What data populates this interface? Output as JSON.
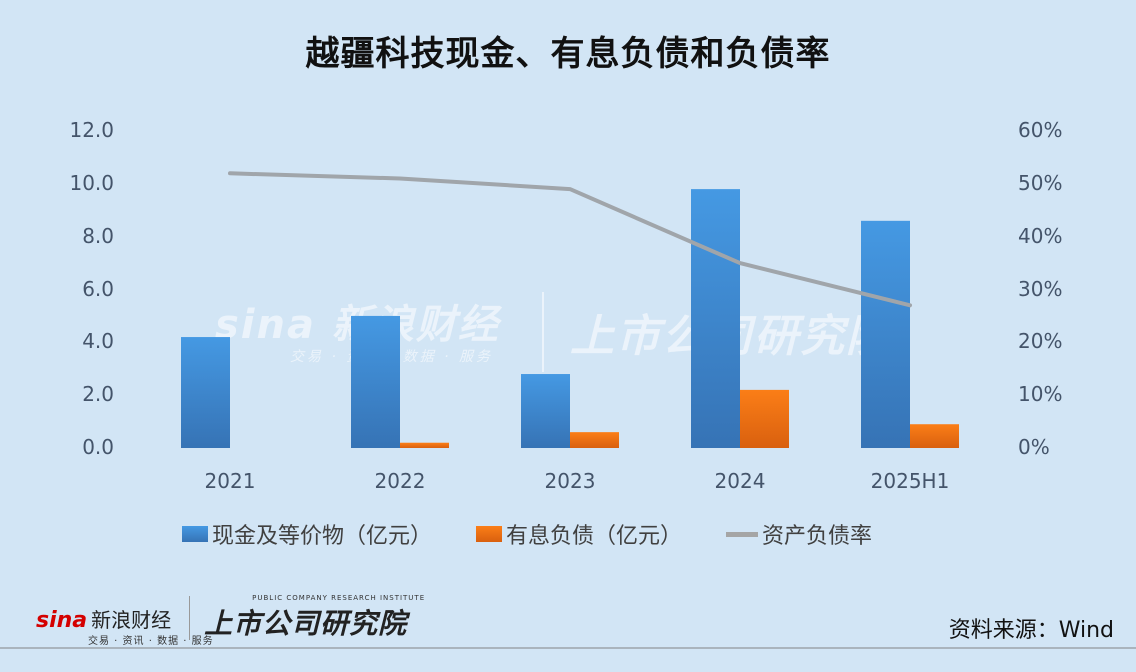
{
  "title": "越疆科技现金、有息负债和负债率",
  "axes": {
    "left_ticks": [
      "12.0",
      "10.0",
      "8.0",
      "6.0",
      "4.0",
      "2.0",
      "0.0"
    ],
    "right_ticks": [
      "60%",
      "50%",
      "40%",
      "30%",
      "20%",
      "10%",
      "0%"
    ],
    "x_ticks": [
      "2021",
      "2022",
      "2023",
      "2024",
      "2025H1"
    ]
  },
  "legend": {
    "cash": "现金及等价物（亿元）",
    "debt": "有息负债（亿元）",
    "ratio": "资产负债率"
  },
  "colors": {
    "cash": "#4190d8",
    "debt": "#f07a1a",
    "ratio": "#a5a5a5",
    "background": "#d2e5f5"
  },
  "watermark": {
    "brand": "sina 新浪财经",
    "brand_sub": "交易 · 资讯 · 数据 · 服务",
    "institute": "上市公司研究院"
  },
  "footer": {
    "sina_word": "sina",
    "sina_cn": "新浪财经",
    "sina_sub": "交易 · 资讯 · 数据 · 服务",
    "institute_en": "PUBLIC COMPANY RESEARCH INSTITUTE",
    "institute_cn": "上市公司研究院",
    "source": "资料来源：Wind"
  },
  "chart_data": {
    "type": "bar",
    "title": "越疆科技现金、有息负债和负债率",
    "categories": [
      "2021",
      "2022",
      "2023",
      "2024",
      "2025H1"
    ],
    "series": [
      {
        "name": "现金及等价物（亿元）",
        "type": "bar",
        "axis": "left",
        "values": [
          4.2,
          5.0,
          2.8,
          9.8,
          8.6
        ]
      },
      {
        "name": "有息负债（亿元）",
        "type": "bar",
        "axis": "left",
        "values": [
          0.0,
          0.2,
          0.6,
          2.2,
          0.9
        ]
      },
      {
        "name": "资产负债率",
        "type": "line",
        "axis": "right",
        "values": [
          0.52,
          0.51,
          0.49,
          0.35,
          0.27
        ]
      }
    ],
    "xlabel": "",
    "ylabel": "",
    "ylim": [
      0,
      12
    ],
    "y2lim": [
      0,
      0.6
    ],
    "grid": false,
    "legend_position": "bottom"
  }
}
